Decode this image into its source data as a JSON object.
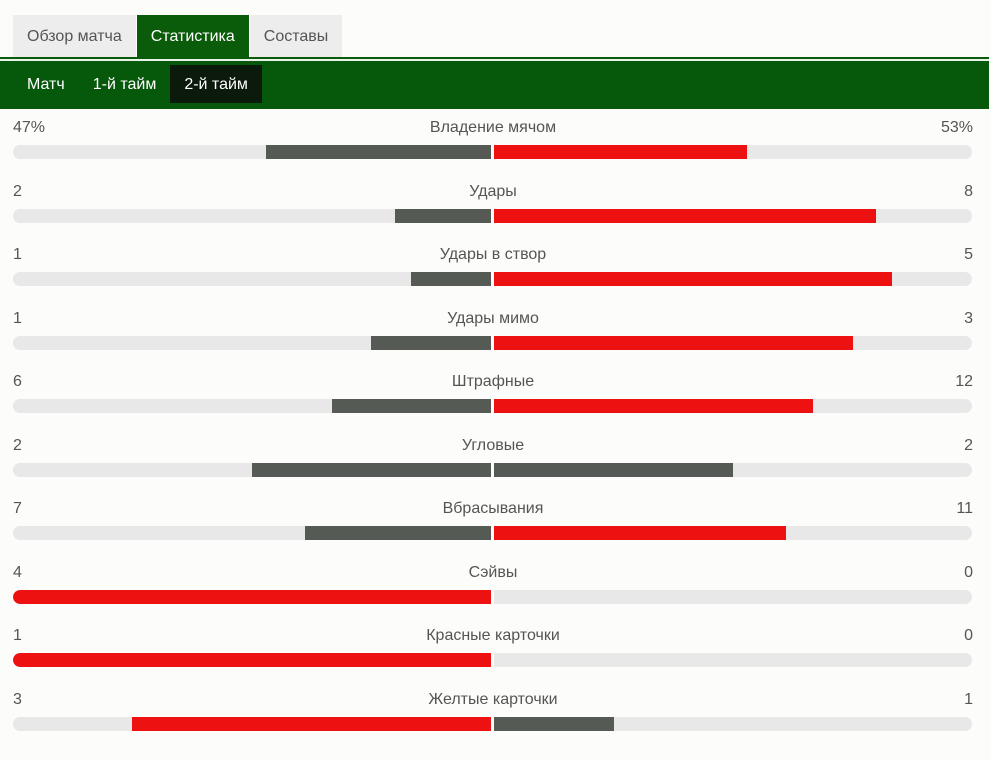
{
  "top_tabs": [
    {
      "label": "Обзор матча",
      "active": false
    },
    {
      "label": "Статистика",
      "active": true
    },
    {
      "label": "Составы",
      "active": false
    }
  ],
  "sub_tabs": [
    {
      "label": "Матч",
      "active": false
    },
    {
      "label": "1-й тайм",
      "active": false
    },
    {
      "label": "2-й тайм",
      "active": true
    }
  ],
  "colors": {
    "leader": "#ee1111",
    "trailer": "#555a55",
    "track": "#e8e8e8",
    "header_green": "#06580a"
  },
  "stats": [
    {
      "label": "Владение мячом",
      "left": "47%",
      "right": "53%",
      "left_share": 0.47,
      "right_share": 0.53
    },
    {
      "label": "Удары",
      "left": "2",
      "right": "8",
      "left_share": 0.2,
      "right_share": 0.8
    },
    {
      "label": "Удары в створ",
      "left": "1",
      "right": "5",
      "left_share": 0.167,
      "right_share": 0.833
    },
    {
      "label": "Удары мимо",
      "left": "1",
      "right": "3",
      "left_share": 0.25,
      "right_share": 0.75
    },
    {
      "label": "Штрафные",
      "left": "6",
      "right": "12",
      "left_share": 0.333,
      "right_share": 0.667
    },
    {
      "label": "Угловые",
      "left": "2",
      "right": "2",
      "left_share": 0.5,
      "right_share": 0.5
    },
    {
      "label": "Вбрасывания",
      "left": "7",
      "right": "11",
      "left_share": 0.389,
      "right_share": 0.611
    },
    {
      "label": "Сэйвы",
      "left": "4",
      "right": "0",
      "left_share": 1.0,
      "right_share": 0.0
    },
    {
      "label": "Красные карточки",
      "left": "1",
      "right": "0",
      "left_share": 1.0,
      "right_share": 0.0
    },
    {
      "label": "Желтые карточки",
      "left": "3",
      "right": "1",
      "left_share": 0.75,
      "right_share": 0.25
    }
  ]
}
